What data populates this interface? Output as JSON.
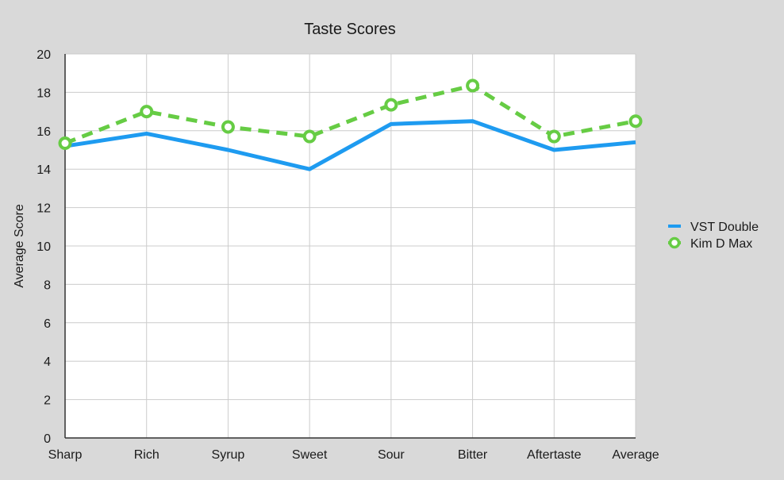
{
  "chart_data": {
    "type": "line",
    "title": "Taste Scores",
    "xlabel": "",
    "ylabel": "Average Score",
    "categories": [
      "Sharp",
      "Rich",
      "Syrup",
      "Sweet",
      "Sour",
      "Bitter",
      "Aftertaste",
      "Average"
    ],
    "ylim": [
      0,
      20
    ],
    "yticks": [
      "0",
      "2",
      "4",
      "6",
      "8",
      "10",
      "12",
      "14",
      "16",
      "18",
      "20"
    ],
    "grid": true,
    "legend_position": "right",
    "series": [
      {
        "name": "VST Double",
        "values": [
          15.2,
          15.85,
          15.0,
          14.0,
          16.35,
          16.5,
          15.0,
          15.4
        ],
        "color": "#1e9bf0",
        "line_style": "solid",
        "markers": false
      },
      {
        "name": "Kim D Max",
        "values": [
          15.35,
          17.0,
          16.2,
          15.7,
          17.35,
          18.35,
          15.7,
          16.5
        ],
        "color": "#66cc44",
        "line_style": "dashed",
        "markers": true
      }
    ]
  }
}
